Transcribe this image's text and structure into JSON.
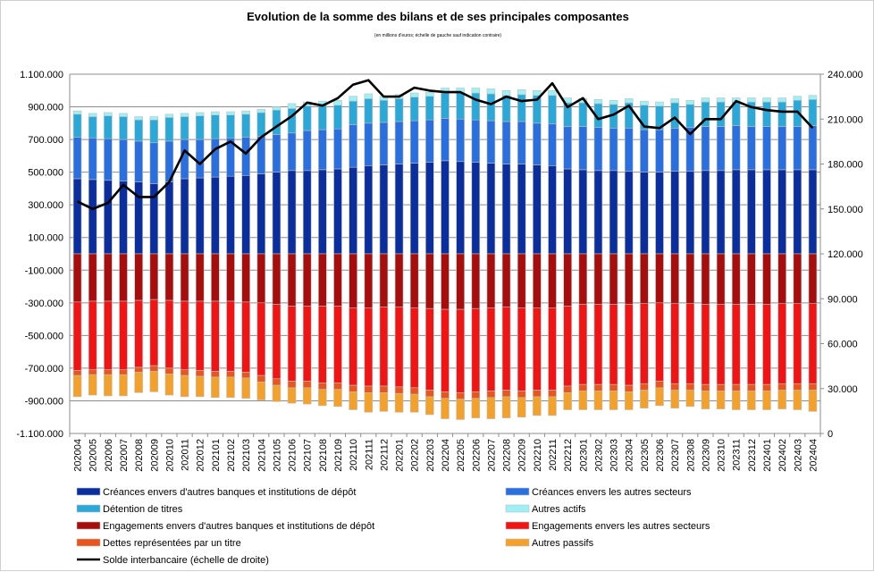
{
  "chart_data": {
    "type": "bar",
    "title": "Evolution de la somme des bilans et de ses principales composantes",
    "subtitle": "(en millions d'euros; échelle de gauche sauf indication contraire)",
    "stacked": true,
    "ylim_left": [
      -1100000,
      1100000
    ],
    "yticks_left": [
      "1.100.000",
      "900.000",
      "700.000",
      "500.000",
      "300.000",
      "100.000",
      "-100.000",
      "-300.000",
      "-500.000",
      "-700.000",
      "-900.000",
      "-1.100.000"
    ],
    "ylim_right": [
      0,
      240000
    ],
    "yticks_right": [
      "240.000",
      "210.000",
      "180.000",
      "150.000",
      "120.000",
      "90.000",
      "60.000",
      "30.000",
      "0"
    ],
    "categories": [
      "202004",
      "202005",
      "202006",
      "202007",
      "202008",
      "202009",
      "202010",
      "202011",
      "202012",
      "202101",
      "202102",
      "202103",
      "202104",
      "202105",
      "202106",
      "202107",
      "202108",
      "202109",
      "202110",
      "202111",
      "202112",
      "202201",
      "202202",
      "202203",
      "202204",
      "202205",
      "202206",
      "202207",
      "202208",
      "202209",
      "202210",
      "202211",
      "202212",
      "202301",
      "202302",
      "202303",
      "202304",
      "202305",
      "202306",
      "202307",
      "202308",
      "202309",
      "202310",
      "202311",
      "202312",
      "202401",
      "202402",
      "202403",
      "202404"
    ],
    "series": [
      {
        "name": "Créances envers d'autres banques et institutions de dépôt",
        "color": "#0a2e9e",
        "axis": "left",
        "values": [
          460000,
          455000,
          450000,
          445000,
          440000,
          430000,
          440000,
          460000,
          465000,
          470000,
          475000,
          480000,
          490000,
          500000,
          510000,
          510000,
          515000,
          520000,
          530000,
          540000,
          545000,
          550000,
          555000,
          560000,
          570000,
          565000,
          560000,
          555000,
          550000,
          550000,
          545000,
          540000,
          520000,
          515000,
          510000,
          510000,
          505000,
          500000,
          500000,
          505000,
          505000,
          510000,
          510000,
          515000,
          515000,
          515000,
          515000,
          515000,
          515000
        ]
      },
      {
        "name": "Créances envers les autres secteurs",
        "color": "#2a6fdf",
        "axis": "left",
        "values": [
          255000,
          255000,
          255000,
          255000,
          250000,
          250000,
          250000,
          240000,
          235000,
          235000,
          235000,
          235000,
          230000,
          230000,
          230000,
          245000,
          245000,
          245000,
          260000,
          260000,
          260000,
          260000,
          260000,
          260000,
          260000,
          260000,
          260000,
          260000,
          260000,
          260000,
          255000,
          255000,
          260000,
          265000,
          265000,
          260000,
          265000,
          260000,
          260000,
          265000,
          270000,
          270000,
          270000,
          270000,
          265000,
          265000,
          265000,
          265000,
          270000
        ]
      },
      {
        "name": "Détention de titres",
        "color": "#2aa8d8",
        "axis": "left",
        "values": [
          140000,
          130000,
          140000,
          140000,
          130000,
          140000,
          145000,
          140000,
          145000,
          145000,
          140000,
          140000,
          145000,
          150000,
          150000,
          150000,
          150000,
          145000,
          145000,
          150000,
          135000,
          140000,
          145000,
          145000,
          155000,
          160000,
          165000,
          165000,
          160000,
          165000,
          170000,
          175000,
          145000,
          145000,
          145000,
          145000,
          155000,
          150000,
          145000,
          155000,
          140000,
          150000,
          150000,
          145000,
          150000,
          150000,
          150000,
          160000,
          160000
        ]
      },
      {
        "name": "Autres actifs",
        "color": "#9ef0f4",
        "axis": "left",
        "values": [
          20000,
          20000,
          20000,
          20000,
          20000,
          20000,
          20000,
          20000,
          20000,
          20000,
          20000,
          20000,
          20000,
          20000,
          30000,
          25000,
          25000,
          30000,
          30000,
          30000,
          25000,
          25000,
          25000,
          25000,
          30000,
          30000,
          30000,
          30000,
          30000,
          30000,
          30000,
          30000,
          30000,
          25000,
          25000,
          25000,
          25000,
          25000,
          25000,
          25000,
          25000,
          25000,
          25000,
          25000,
          25000,
          25000,
          25000,
          25000,
          25000
        ]
      },
      {
        "name": "Engagements envers d'autres banques et institutions de dépôt",
        "color": "#a80d0d",
        "axis": "left",
        "values": [
          -295000,
          -290000,
          -290000,
          -290000,
          -285000,
          -280000,
          -285000,
          -290000,
          -290000,
          -290000,
          -290000,
          -295000,
          -300000,
          -310000,
          -320000,
          -320000,
          -320000,
          -320000,
          -330000,
          -330000,
          -325000,
          -325000,
          -330000,
          -335000,
          -340000,
          -340000,
          -335000,
          -330000,
          -325000,
          -330000,
          -330000,
          -330000,
          -320000,
          -310000,
          -310000,
          -310000,
          -310000,
          -305000,
          -300000,
          -305000,
          -305000,
          -310000,
          -310000,
          -310000,
          -310000,
          -310000,
          -305000,
          -305000,
          -305000
        ]
      },
      {
        "name": "Engagements envers les autres secteurs",
        "color": "#f01414",
        "axis": "left",
        "values": [
          -420000,
          -420000,
          -420000,
          -420000,
          -410000,
          -405000,
          -415000,
          -420000,
          -425000,
          -430000,
          -430000,
          -430000,
          -445000,
          -455000,
          -460000,
          -460000,
          -470000,
          -470000,
          -475000,
          -480000,
          -485000,
          -490000,
          -490000,
          -500000,
          -505000,
          -510000,
          -510000,
          -510000,
          -510000,
          -510000,
          -505000,
          -505000,
          -490000,
          -490000,
          -490000,
          -490000,
          -495000,
          -490000,
          -480000,
          -490000,
          -490000,
          -490000,
          -490000,
          -490000,
          -490000,
          -490000,
          -490000,
          -490000,
          -490000
        ]
      },
      {
        "name": "Dettes représentées par un titre",
        "color": "#e8551e",
        "axis": "left",
        "values": [
          -30000,
          -30000,
          -30000,
          -30000,
          -30000,
          -35000,
          -35000,
          -35000,
          -35000,
          -35000,
          -35000,
          -35000,
          -40000,
          -40000,
          -40000,
          -40000,
          -40000,
          -40000,
          -40000,
          -40000,
          -40000,
          -40000,
          -40000,
          -40000,
          -40000,
          -40000,
          -40000,
          -40000,
          -40000,
          -40000,
          -40000,
          -40000,
          -40000,
          -40000,
          -40000,
          -40000,
          -40000,
          -40000,
          -40000,
          -40000,
          -40000,
          -40000,
          -40000,
          -40000,
          -40000,
          -40000,
          -40000,
          -40000,
          -40000
        ]
      },
      {
        "name": "Autres passifs",
        "color": "#f3a12a",
        "axis": "left",
        "values": [
          -130000,
          -125000,
          -130000,
          -130000,
          -125000,
          -125000,
          -130000,
          -130000,
          -125000,
          -125000,
          -125000,
          -125000,
          -110000,
          -100000,
          -95000,
          -100000,
          -100000,
          -105000,
          -110000,
          -120000,
          -115000,
          -115000,
          -110000,
          -110000,
          -125000,
          -125000,
          -120000,
          -130000,
          -130000,
          -120000,
          -115000,
          -115000,
          -105000,
          -115000,
          -115000,
          -115000,
          -110000,
          -110000,
          -110000,
          -110000,
          -100000,
          -110000,
          -110000,
          -115000,
          -115000,
          -115000,
          -115000,
          -120000,
          -130000
        ]
      },
      {
        "name": "Solde interbancaire (échelle de droite)",
        "color": "#000000",
        "axis": "right",
        "kind": "line",
        "values": [
          155000,
          150000,
          154000,
          166000,
          158000,
          158000,
          168000,
          189000,
          180000,
          190000,
          195000,
          187000,
          198000,
          205000,
          212000,
          221000,
          219000,
          224000,
          233000,
          236000,
          225000,
          225000,
          231000,
          229000,
          228000,
          228000,
          223000,
          220000,
          225000,
          222000,
          223000,
          234000,
          218000,
          224000,
          210000,
          213000,
          219000,
          205000,
          204000,
          211000,
          200000,
          210000,
          210000,
          222000,
          218000,
          216000,
          215000,
          215000,
          204000
        ]
      }
    ]
  },
  "legend": {
    "items": [
      {
        "label": "Créances envers d'autres banques et institutions de dépôt",
        "color": "#0a2e9e",
        "kind": "box"
      },
      {
        "label": "Créances envers les autres secteurs",
        "color": "#2a6fdf",
        "kind": "box"
      },
      {
        "label": "Détention de titres",
        "color": "#2aa8d8",
        "kind": "box"
      },
      {
        "label": "Autres actifs",
        "color": "#9ef0f4",
        "kind": "box"
      },
      {
        "label": "Engagements envers d'autres banques et institutions de dépôt",
        "color": "#a80d0d",
        "kind": "box"
      },
      {
        "label": "Engagements envers les autres secteurs",
        "color": "#f01414",
        "kind": "box"
      },
      {
        "label": "Dettes représentées par un titre",
        "color": "#e8551e",
        "kind": "box"
      },
      {
        "label": "Autres passifs",
        "color": "#f3a12a",
        "kind": "box"
      },
      {
        "label": "Solde interbancaire (échelle de droite)",
        "color": "#000000",
        "kind": "line"
      }
    ]
  }
}
